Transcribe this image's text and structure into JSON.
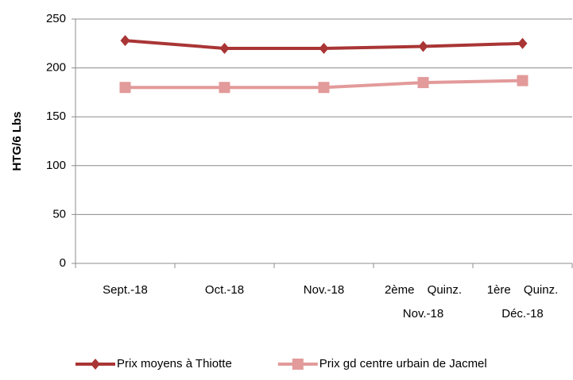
{
  "chart_data": {
    "type": "line",
    "y_label": "HTG/6 Lbs",
    "categories": [
      "Sept.-18",
      "Oct.-18",
      "Nov.-18",
      "2ème Quinz. Nov.-18",
      "1ère Quinz. Déc.-18"
    ],
    "series": [
      {
        "name": "Prix moyens à Thiotte",
        "color": "#a93535",
        "marker": "diamond",
        "values": [
          228,
          220,
          220,
          222,
          225
        ]
      },
      {
        "name": "Prix gd centre urbain de Jacmel",
        "color": "#e39a9a",
        "marker": "square",
        "values": [
          180,
          180,
          180,
          185,
          187
        ]
      }
    ],
    "ylim": [
      0,
      250
    ],
    "yticks": [
      0,
      50,
      100,
      150,
      200,
      250
    ],
    "grid": true
  }
}
